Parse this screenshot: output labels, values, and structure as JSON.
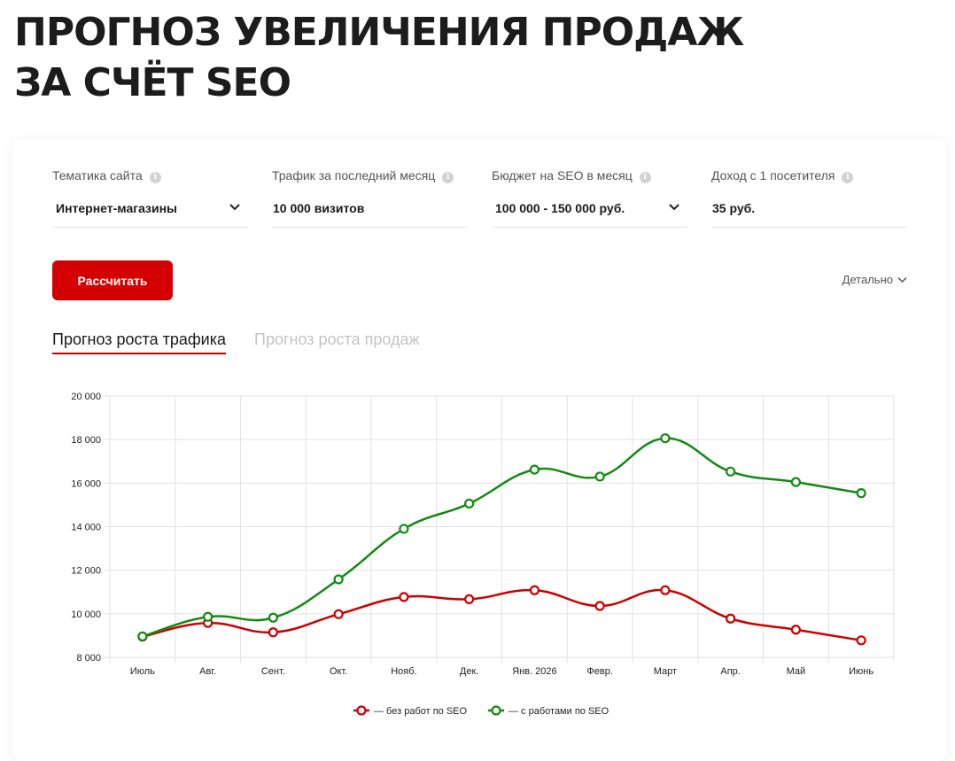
{
  "page": {
    "title_line1": "ПРОГНОЗ УВЕЛИЧЕНИЯ ПРОДАЖ",
    "title_line2": "ЗА СЧЁТ SEO"
  },
  "form": {
    "fields": [
      {
        "label": "Тематика сайта",
        "value": "Интернет-магазины",
        "type": "select"
      },
      {
        "label": "Трафик за последний месяц",
        "value": "10 000 визитов",
        "type": "input"
      },
      {
        "label": "Бюджет на SEO в месяц",
        "value": "100 000 - 150 000 руб.",
        "type": "select"
      },
      {
        "label": "Доход с 1 посетителя",
        "value": "35 руб.",
        "type": "input"
      }
    ],
    "info_icon": "info-icon",
    "calculate_label": "Рассчитать",
    "details_label": "Детально"
  },
  "tabs": [
    {
      "label": "Прогноз роста трафика",
      "active": true
    },
    {
      "label": "Прогноз роста продаж",
      "active": false
    }
  ],
  "colors": {
    "accent": "#d40000",
    "series_without_seo": "#cc0000",
    "series_with_seo": "#128a12"
  },
  "chart_data": {
    "type": "line",
    "categories": [
      "Июль",
      "Авг.",
      "Сент.",
      "Окт.",
      "Нояб.",
      "Дек.",
      "Янв. 2026",
      "Февр.",
      "Март",
      "Апр.",
      "Май",
      "Июнь"
    ],
    "ylim": [
      8000,
      20000
    ],
    "yticks": [
      8000,
      10000,
      12000,
      14000,
      16000,
      18000,
      20000
    ],
    "ytick_labels": [
      "8 000",
      "10 000",
      "12 000",
      "14 000",
      "16 000",
      "18 000",
      "20 000"
    ],
    "grid": true,
    "legend_position": "bottom-center",
    "series": [
      {
        "name": "— без работ по SEO",
        "color": "#cc0000",
        "values": [
          8950,
          9580,
          9150,
          9980,
          10770,
          10670,
          11080,
          10360,
          11080,
          9780,
          9270,
          8780
        ]
      },
      {
        "name": "— с работами по SEO",
        "color": "#128a12",
        "values": [
          8960,
          9860,
          9820,
          11580,
          13900,
          15060,
          16620,
          16300,
          18060,
          16530,
          16050,
          15540
        ]
      }
    ]
  }
}
